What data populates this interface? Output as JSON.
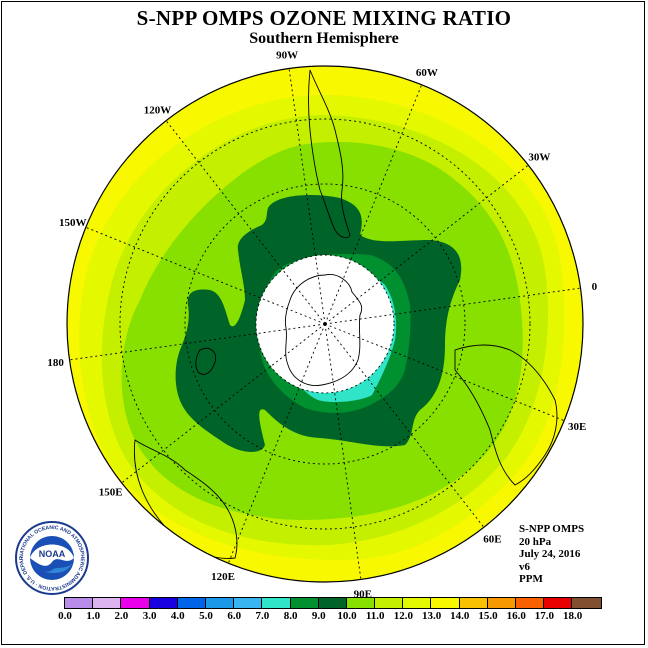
{
  "title": "S-NPP OMPS OZONE MIXING RATIO",
  "subtitle": "Southern Hemisphere",
  "info": {
    "line1": "S-NPP OMPS",
    "line2": "20 hPa",
    "line3": "July 24, 2016",
    "line4": "v6",
    "line5": "PPM"
  },
  "longitude_labels": [
    {
      "text": "90W",
      "lon": -90
    },
    {
      "text": "60W",
      "lon": -60
    },
    {
      "text": "30W",
      "lon": -30
    },
    {
      "text": "0",
      "lon": 0
    },
    {
      "text": "30E",
      "lon": 30
    },
    {
      "text": "60E",
      "lon": 60
    },
    {
      "text": "90E",
      "lon": 90
    },
    {
      "text": "120E",
      "lon": 120
    },
    {
      "text": "150E",
      "lon": 150
    },
    {
      "text": "180",
      "lon": 180
    },
    {
      "text": "150W",
      "lon": -150
    },
    {
      "text": "120W",
      "lon": -120
    }
  ],
  "colorbar": {
    "unit": "PPM",
    "ticks": [
      "0.0",
      "1.0",
      "2.0",
      "3.0",
      "4.0",
      "5.0",
      "6.0",
      "7.0",
      "8.0",
      "9.0",
      "10.0",
      "11.0",
      "12.0",
      "13.0",
      "14.0",
      "15.0",
      "16.0",
      "17.0",
      "18.0"
    ],
    "colors": [
      "#b88ce8",
      "#dcb4f0",
      "#e800e8",
      "#1800e0",
      "#0064e8",
      "#1c98e8",
      "#38b4f0",
      "#30e4c8",
      "#009030",
      "#006428",
      "#88e000",
      "#c4f000",
      "#e4f800",
      "#f8f800",
      "#f8c000",
      "#f89800",
      "#f86000",
      "#e80000",
      "#805030"
    ]
  },
  "logo": {
    "text": "NOAA",
    "ring_text": "NATIONAL OCEANIC AND ATMOSPHERIC ADMINISTRATION · U.S. DEPARTMENT OF COMMERCE"
  },
  "map_colors": {
    "ring_yellow": "#f8f800",
    "light_yellow_green": "#e4f800",
    "yellow_green": "#c4f000",
    "light_green": "#88e000",
    "dark_green": "#006428",
    "medium_green": "#009030",
    "aqua": "#30e4c8",
    "polar_night": "#ffffff"
  }
}
